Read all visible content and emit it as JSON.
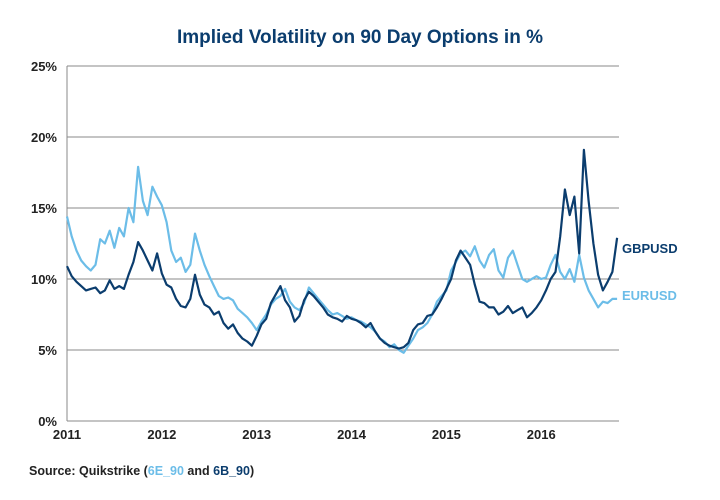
{
  "chart_data": {
    "type": "line",
    "title": "Implied Volatility on 90 Day Options in %",
    "xlabel": "",
    "ylabel": "",
    "xlim": [
      2011.0,
      2016.82
    ],
    "ylim": [
      0,
      25
    ],
    "grid": true,
    "y_ticks": [
      0,
      5,
      10,
      15,
      20,
      25
    ],
    "y_tick_labels": [
      "0%",
      "5%",
      "10%",
      "15%",
      "20%",
      "25%"
    ],
    "x_ticks": [
      2011,
      2012,
      2013,
      2014,
      2015,
      2016
    ],
    "x_tick_labels": [
      "2011",
      "2012",
      "2013",
      "2014",
      "2015",
      "2016"
    ],
    "legend": "inline-right",
    "series": [
      {
        "name": "EURUSD",
        "color": "#6cbde8",
        "x": [
          2011.0,
          2011.05,
          2011.1,
          2011.15,
          2011.2,
          2011.25,
          2011.3,
          2011.35,
          2011.4,
          2011.45,
          2011.5,
          2011.55,
          2011.6,
          2011.65,
          2011.7,
          2011.75,
          2011.8,
          2011.85,
          2011.9,
          2011.95,
          2012.0,
          2012.05,
          2012.1,
          2012.15,
          2012.2,
          2012.25,
          2012.3,
          2012.35,
          2012.4,
          2012.45,
          2012.5,
          2012.55,
          2012.6,
          2012.65,
          2012.7,
          2012.75,
          2012.8,
          2012.85,
          2012.9,
          2012.95,
          2013.0,
          2013.05,
          2013.1,
          2013.15,
          2013.2,
          2013.25,
          2013.3,
          2013.35,
          2013.4,
          2013.45,
          2013.5,
          2013.55,
          2013.6,
          2013.65,
          2013.7,
          2013.75,
          2013.8,
          2013.85,
          2013.9,
          2013.95,
          2014.0,
          2014.05,
          2014.1,
          2014.15,
          2014.2,
          2014.25,
          2014.3,
          2014.35,
          2014.4,
          2014.45,
          2014.5,
          2014.55,
          2014.6,
          2014.65,
          2014.7,
          2014.75,
          2014.8,
          2014.85,
          2014.9,
          2014.95,
          2015.0,
          2015.05,
          2015.1,
          2015.15,
          2015.2,
          2015.25,
          2015.3,
          2015.35,
          2015.4,
          2015.45,
          2015.5,
          2015.55,
          2015.6,
          2015.65,
          2015.7,
          2015.75,
          2015.8,
          2015.85,
          2015.9,
          2015.95,
          2016.0,
          2016.05,
          2016.1,
          2016.15,
          2016.2,
          2016.25,
          2016.3,
          2016.35,
          2016.4,
          2016.45,
          2016.5,
          2016.55,
          2016.6,
          2016.65,
          2016.7,
          2016.75,
          2016.8
        ],
        "values": [
          14.4,
          13.0,
          12.0,
          11.3,
          10.9,
          10.6,
          11.0,
          12.8,
          12.5,
          13.4,
          12.2,
          13.6,
          13.0,
          15.0,
          14.0,
          17.9,
          15.5,
          14.5,
          16.5,
          15.8,
          15.2,
          14.0,
          12.0,
          11.2,
          11.5,
          10.5,
          11.0,
          13.2,
          12.0,
          11.0,
          10.2,
          9.5,
          8.8,
          8.6,
          8.7,
          8.5,
          7.9,
          7.6,
          7.3,
          6.9,
          6.4,
          7.0,
          7.5,
          8.2,
          8.6,
          8.8,
          9.3,
          8.4,
          8.0,
          7.8,
          8.3,
          9.4,
          9.0,
          8.6,
          8.2,
          7.8,
          7.5,
          7.6,
          7.4,
          7.2,
          7.3,
          7.1,
          7.0,
          6.8,
          6.6,
          6.3,
          5.8,
          5.6,
          5.2,
          5.4,
          5.0,
          4.8,
          5.3,
          5.8,
          6.4,
          6.6,
          6.9,
          7.5,
          8.4,
          8.8,
          9.2,
          10.6,
          11.2,
          11.8,
          12.0,
          11.6,
          12.3,
          11.3,
          10.8,
          11.7,
          12.1,
          10.6,
          10.1,
          11.5,
          12.0,
          11.0,
          10.0,
          9.8,
          10.0,
          10.2,
          10.0,
          10.1,
          11.0,
          11.7,
          10.5,
          10.0,
          10.7,
          9.8,
          11.7,
          10.1,
          9.2,
          8.6,
          8.0,
          8.4,
          8.3,
          8.6,
          8.6
        ]
      },
      {
        "name": "GBPUSD",
        "color": "#0b3d6e",
        "x": [
          2011.0,
          2011.05,
          2011.1,
          2011.15,
          2011.2,
          2011.25,
          2011.3,
          2011.35,
          2011.4,
          2011.45,
          2011.5,
          2011.55,
          2011.6,
          2011.65,
          2011.7,
          2011.75,
          2011.8,
          2011.85,
          2011.9,
          2011.95,
          2012.0,
          2012.05,
          2012.1,
          2012.15,
          2012.2,
          2012.25,
          2012.3,
          2012.35,
          2012.4,
          2012.45,
          2012.5,
          2012.55,
          2012.6,
          2012.65,
          2012.7,
          2012.75,
          2012.8,
          2012.85,
          2012.9,
          2012.95,
          2013.0,
          2013.05,
          2013.1,
          2013.15,
          2013.2,
          2013.25,
          2013.3,
          2013.35,
          2013.4,
          2013.45,
          2013.5,
          2013.55,
          2013.6,
          2013.65,
          2013.7,
          2013.75,
          2013.8,
          2013.85,
          2013.9,
          2013.95,
          2014.0,
          2014.05,
          2014.1,
          2014.15,
          2014.2,
          2014.25,
          2014.3,
          2014.35,
          2014.4,
          2014.45,
          2014.5,
          2014.55,
          2014.6,
          2014.65,
          2014.7,
          2014.75,
          2014.8,
          2014.85,
          2014.9,
          2014.95,
          2015.0,
          2015.05,
          2015.1,
          2015.15,
          2015.2,
          2015.25,
          2015.3,
          2015.35,
          2015.4,
          2015.45,
          2015.5,
          2015.55,
          2015.6,
          2015.65,
          2015.7,
          2015.75,
          2015.8,
          2015.85,
          2015.9,
          2015.95,
          2016.0,
          2016.05,
          2016.1,
          2016.15,
          2016.2,
          2016.25,
          2016.3,
          2016.35,
          2016.4,
          2016.45,
          2016.5,
          2016.55,
          2016.6,
          2016.65,
          2016.7,
          2016.75,
          2016.8
        ],
        "values": [
          10.9,
          10.2,
          9.8,
          9.5,
          9.2,
          9.3,
          9.4,
          9.0,
          9.2,
          9.9,
          9.3,
          9.5,
          9.3,
          10.3,
          11.2,
          12.6,
          12.0,
          11.3,
          10.6,
          11.8,
          10.4,
          9.6,
          9.4,
          8.6,
          8.1,
          8.0,
          8.6,
          10.3,
          8.9,
          8.2,
          8.0,
          7.5,
          7.7,
          6.9,
          6.5,
          6.8,
          6.2,
          5.8,
          5.6,
          5.3,
          6.0,
          6.8,
          7.2,
          8.3,
          8.9,
          9.5,
          8.5,
          8.0,
          7.0,
          7.4,
          8.5,
          9.1,
          8.8,
          8.4,
          8.0,
          7.5,
          7.3,
          7.2,
          7.0,
          7.4,
          7.2,
          7.1,
          6.9,
          6.6,
          6.9,
          6.3,
          5.8,
          5.5,
          5.3,
          5.2,
          5.1,
          5.2,
          5.5,
          6.4,
          6.8,
          6.9,
          7.4,
          7.5,
          8.0,
          8.6,
          9.3,
          10.0,
          11.3,
          12.0,
          11.5,
          11.0,
          9.6,
          8.4,
          8.3,
          8.0,
          8.0,
          7.5,
          7.7,
          8.1,
          7.6,
          7.8,
          8.0,
          7.3,
          7.6,
          8.0,
          8.5,
          9.2,
          10.0,
          10.5,
          13.0,
          16.3,
          14.5,
          15.8,
          11.8,
          19.1,
          15.5,
          12.5,
          10.3,
          9.2,
          9.8,
          10.5,
          12.9
        ]
      }
    ]
  },
  "source": {
    "prefix": "Source: Quikstrike (",
    "eur_code": "6E_90",
    "middle": " and ",
    "gbp_code": "6B_90",
    "suffix": ")"
  }
}
